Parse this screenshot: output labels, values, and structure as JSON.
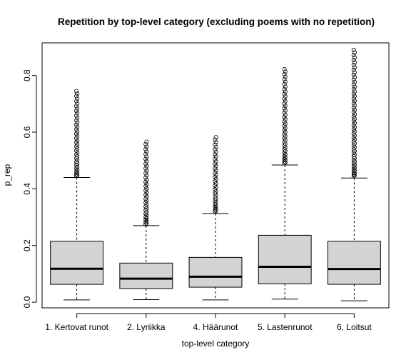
{
  "chart_data": {
    "type": "box",
    "title": "Repetition by top-level category (excluding poems with no repetition)",
    "xlabel": "top-level category",
    "ylabel": "p_rep",
    "ylim": [
      -0.02,
      0.915
    ],
    "yticks": [
      0.0,
      0.2,
      0.4,
      0.6,
      0.8
    ],
    "ytick_labels": [
      "0.0",
      "0.2",
      "0.4",
      "0.6",
      "0.8"
    ],
    "box_fill": "#d3d3d3",
    "categories": [
      "1. Kertovat runot",
      "2. Lyriikka",
      "4. Häärunot",
      "5. Lastenrunot",
      "6. Loitsut"
    ],
    "boxes": [
      {
        "min": 0.008,
        "q1": 0.063,
        "median": 0.118,
        "q3": 0.215,
        "max": 0.44,
        "outlier_min": 0.445,
        "outlier_max": 0.745
      },
      {
        "min": 0.009,
        "q1": 0.048,
        "median": 0.083,
        "q3": 0.138,
        "max": 0.27,
        "outlier_min": 0.275,
        "outlier_max": 0.566
      },
      {
        "min": 0.008,
        "q1": 0.053,
        "median": 0.09,
        "q3": 0.158,
        "max": 0.313,
        "outlier_min": 0.32,
        "outlier_max": 0.582
      },
      {
        "min": 0.011,
        "q1": 0.065,
        "median": 0.125,
        "q3": 0.236,
        "max": 0.484,
        "outlier_min": 0.49,
        "outlier_max": 0.822
      },
      {
        "min": 0.005,
        "q1": 0.063,
        "median": 0.117,
        "q3": 0.215,
        "max": 0.438,
        "outlier_min": 0.445,
        "outlier_max": 0.89
      }
    ]
  }
}
